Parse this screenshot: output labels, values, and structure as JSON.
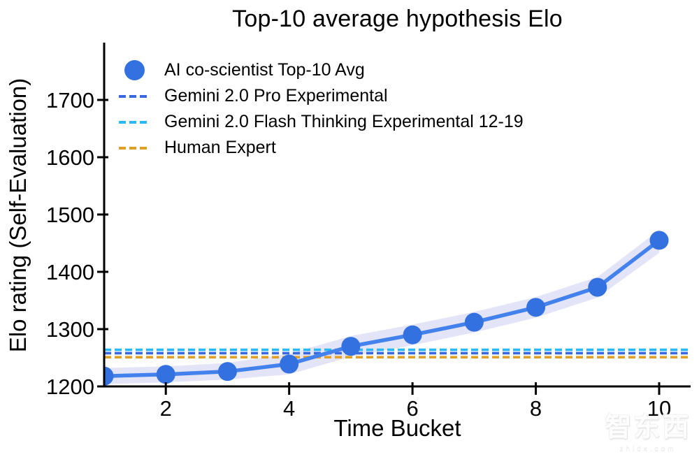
{
  "chart_data": {
    "type": "line",
    "title": "Top-10 average hypothesis Elo",
    "xlabel": "Time Bucket",
    "ylabel": "Elo rating (Self-Evaluation)",
    "x": [
      1,
      2,
      3,
      4,
      5,
      6,
      7,
      8,
      9,
      10
    ],
    "series": [
      {
        "name": "AI co-scientist Top-10 Avg",
        "values": [
          1218,
          1221,
          1226,
          1239,
          1270,
          1290,
          1312,
          1338,
          1373,
          1455
        ],
        "band_lower": [
          1204,
          1207,
          1212,
          1221,
          1252,
          1272,
          1294,
          1320,
          1355,
          1433
        ],
        "band_upper": [
          1232,
          1235,
          1241,
          1257,
          1288,
          1308,
          1330,
          1356,
          1391,
          1473
        ],
        "line_color": "#4382EC",
        "marker_color": "#3371E1",
        "band_color": "#E4E4F8",
        "style": "solid-with-circle-markers"
      }
    ],
    "baselines": [
      {
        "name": "Gemini 2.0 Flash Thinking Experimental 12-19",
        "value": 1264,
        "color": "#29B9F6",
        "style": "dashed"
      },
      {
        "name": "Gemini 2.0 Pro Experimental",
        "value": 1258,
        "color": "#3A68E0",
        "style": "dashed"
      },
      {
        "name": "Human Expert",
        "value": 1251,
        "color": "#E0A028",
        "style": "dashed"
      }
    ],
    "x_ticks": [
      2,
      4,
      6,
      8,
      10
    ],
    "y_ticks": [
      1200,
      1300,
      1400,
      1500,
      1600,
      1700
    ],
    "xlim": [
      1,
      10.51
    ],
    "ylim": [
      1200,
      1800
    ],
    "grid": false,
    "legend_position": "upper left"
  },
  "legend": {
    "items": [
      {
        "label": "AI co-scientist Top-10 Avg",
        "marker": "circle",
        "color": "#3371E1"
      },
      {
        "label": "Gemini 2.0 Pro Experimental",
        "marker": "dashed-line",
        "color": "#3A68E0"
      },
      {
        "label": "Gemini 2.0 Flash Thinking Experimental 12-19",
        "marker": "dashed-line",
        "color": "#29B9F6"
      },
      {
        "label": "Human Expert",
        "marker": "dashed-line",
        "color": "#E0A028"
      }
    ]
  },
  "watermark": {
    "text": "智东西",
    "subtext": "zhidx.com"
  }
}
